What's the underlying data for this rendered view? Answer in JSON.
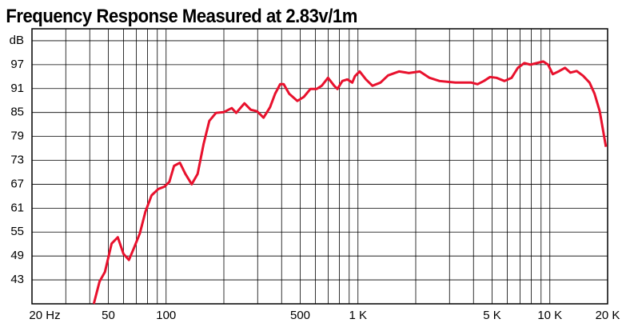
{
  "chart_data": {
    "type": "line",
    "title": "Frequency Response Measured at 2.83v/1m",
    "xscale": "log",
    "xlim": [
      20,
      20000
    ],
    "xticks": [
      {
        "value": 20,
        "label": "20 Hz"
      },
      50,
      100,
      500,
      {
        "value": 1000,
        "label": "1 K"
      },
      {
        "value": 5000,
        "label": "5 K"
      },
      {
        "value": 10000,
        "label": "10 K"
      },
      {
        "value": 20000,
        "label": "20 K"
      }
    ],
    "xgrid": [
      30,
      40,
      60,
      70,
      80,
      90,
      200,
      300,
      400,
      600,
      700,
      800,
      900,
      2000,
      3000,
      4000,
      6000,
      7000,
      8000,
      9000
    ],
    "ylim": [
      37,
      106
    ],
    "yticks": [
      43,
      49,
      55,
      61,
      67,
      73,
      79,
      85,
      91,
      97,
      {
        "value": 103,
        "label": "dB"
      }
    ],
    "grid": true,
    "series": [
      {
        "color": "#e8112d",
        "x": [
          42,
          45,
          48,
          52,
          56,
          60,
          64,
          68,
          73,
          78,
          84,
          91,
          98,
          104,
          110,
          118,
          126,
          136,
          146,
          157,
          168,
          182,
          200,
          220,
          232,
          256,
          276,
          298,
          322,
          348,
          370,
          393,
          410,
          438,
          483,
          522,
          565,
          609,
          647,
          698,
          752,
          782,
          829,
          880,
          934,
          964,
          1020,
          1100,
          1190,
          1310,
          1435,
          1640,
          1840,
          2100,
          2360,
          2660,
          3220,
          3900,
          4200,
          4530,
          4880,
          5270,
          5800,
          6320,
          6810,
          7360,
          7920,
          8550,
          9240,
          9790,
          10360,
          11200,
          12000,
          12800,
          13800,
          14900,
          16100,
          17100,
          18200,
          19600
        ],
        "values": [
          37,
          42.6,
          45,
          52.1,
          53.7,
          49.5,
          48,
          51,
          54.7,
          60.1,
          64.2,
          65.8,
          66.4,
          67.6,
          71.6,
          72.4,
          69.6,
          67,
          69.6,
          77.2,
          82.9,
          84.9,
          85.1,
          86.1,
          84.9,
          87.3,
          85.7,
          85.3,
          83.7,
          86.3,
          89.7,
          92.1,
          92.1,
          89.7,
          87.9,
          88.9,
          90.9,
          90.9,
          91.7,
          93.7,
          91.7,
          90.9,
          92.9,
          93.3,
          92.5,
          94.1,
          95.3,
          93.3,
          91.7,
          92.5,
          94.3,
          95.3,
          94.9,
          95.3,
          93.7,
          92.9,
          92.5,
          92.5,
          92.1,
          92.9,
          93.9,
          93.7,
          92.9,
          93.7,
          96.2,
          97.4,
          97,
          97.4,
          97.8,
          97,
          94.6,
          95.4,
          96.2,
          95,
          95.4,
          94.2,
          92.5,
          89.7,
          85.3,
          76.4
        ]
      }
    ]
  }
}
